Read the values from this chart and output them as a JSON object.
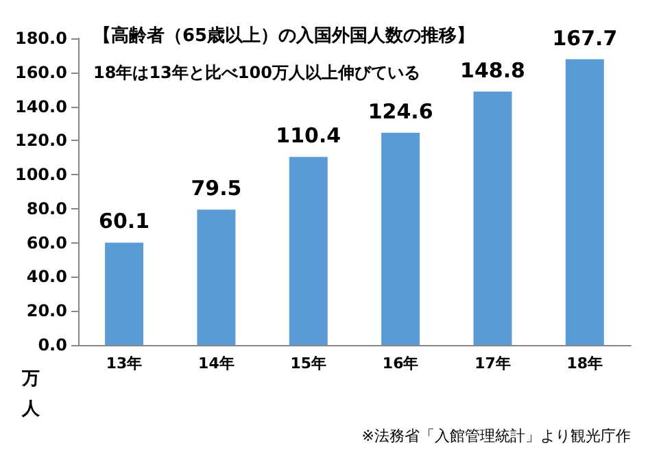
{
  "chart_data": {
    "type": "bar",
    "title": "【高齢者（65歳以上）の入国外国人数の推移】",
    "subtitle": "18年は13年と比べ100万人以上伸びている",
    "ylabel": "万人",
    "annotations": [
      "※法務省「入館管理統計」より観光庁作"
    ],
    "categories": [
      "13年",
      "14年",
      "15年",
      "16年",
      "17年",
      "18年"
    ],
    "values": [
      60.1,
      79.5,
      110.4,
      124.6,
      148.8,
      167.7
    ],
    "color": "#5b9bd5",
    "data_labels": true,
    "ylim": [
      0,
      180
    ],
    "yticks": [
      {
        "value": 0,
        "label": "0.0"
      },
      {
        "value": 20,
        "label": "20.0"
      },
      {
        "value": 40,
        "label": "40.0"
      },
      {
        "value": 60,
        "label": "60.0"
      },
      {
        "value": 80,
        "label": "80.0"
      },
      {
        "value": 100,
        "label": "100.0"
      },
      {
        "value": 120,
        "label": "120.0"
      },
      {
        "value": 140,
        "label": "140.0"
      },
      {
        "value": 160,
        "label": "160.0"
      },
      {
        "value": 180,
        "label": "180.0"
      }
    ]
  }
}
